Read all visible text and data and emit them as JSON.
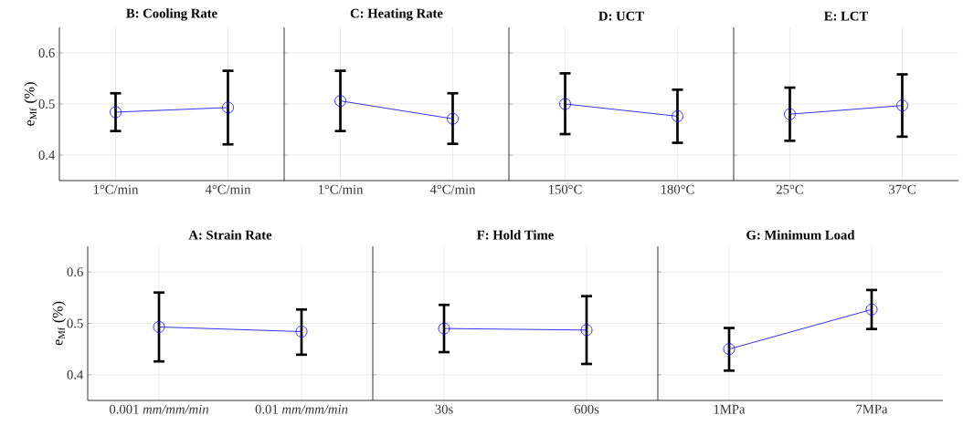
{
  "chart_data": [
    {
      "type": "line",
      "title": "B: Cooling Rate",
      "ylabel": "e$_{Mf}$ (%)",
      "categories": [
        "1°C/min",
        "4°C/min"
      ],
      "values": [
        0.484,
        0.493
      ],
      "errors": [
        [
          0.447,
          0.521
        ],
        [
          0.421,
          0.565
        ]
      ],
      "color": "#0000ff",
      "marker": "circle",
      "ylim": [
        0.35,
        0.65
      ],
      "yticks": [
        0.4,
        0.5,
        0.6
      ],
      "grid": true
    },
    {
      "type": "line",
      "title": "C: Heating Rate",
      "categories": [
        "1°C/min",
        "4°C/min"
      ],
      "values": [
        0.506,
        0.471
      ],
      "errors": [
        [
          0.447,
          0.565
        ],
        [
          0.422,
          0.521
        ]
      ],
      "color": "#0000ff",
      "marker": "circle",
      "ylim": [
        0.35,
        0.65
      ],
      "yticks": [
        0.4,
        0.5,
        0.6
      ],
      "grid": true,
      "tick_labels": "x"
    },
    {
      "type": "line",
      "title": "D: UCT",
      "categories": [
        "150°C",
        "180°C"
      ],
      "values": [
        0.5,
        0.476
      ],
      "errors": [
        [
          0.441,
          0.56
        ],
        [
          0.424,
          0.528
        ]
      ],
      "color": "#0000ff",
      "marker": "circle",
      "ylim": [
        0.35,
        0.65
      ],
      "yticks": [
        0.4,
        0.5,
        0.6
      ],
      "grid": true,
      "tick_labels": "x"
    },
    {
      "type": "line",
      "title": "E: LCT",
      "categories": [
        "25°C",
        "37°C"
      ],
      "values": [
        0.48,
        0.497
      ],
      "errors": [
        [
          0.428,
          0.532
        ],
        [
          0.436,
          0.558
        ]
      ],
      "color": "#0000ff",
      "marker": "circle",
      "ylim": [
        0.35,
        0.65
      ],
      "yticks": [
        0.4,
        0.5,
        0.6
      ],
      "grid": true,
      "tick_labels": "x"
    },
    {
      "type": "line",
      "title": "A: Strain Rate",
      "ylabel": "e$_{Mf}$ (%)",
      "categories": [
        "0.001 *mm/mm/min*",
        "0.01 *mm/mm/min*"
      ],
      "values": [
        0.493,
        0.484
      ],
      "errors": [
        [
          0.426,
          0.56
        ],
        [
          0.439,
          0.527
        ]
      ],
      "color": "#0000ff",
      "marker": "circle",
      "ylim": [
        0.35,
        0.65
      ],
      "yticks": [
        0.4,
        0.5,
        0.6
      ],
      "grid": true
    },
    {
      "type": "line",
      "title": "F: Hold Time",
      "categories": [
        "30s",
        "600s"
      ],
      "values": [
        0.49,
        0.487
      ],
      "errors": [
        [
          0.444,
          0.536
        ],
        [
          0.421,
          0.553
        ]
      ],
      "color": "#0000ff",
      "marker": "circle",
      "ylim": [
        0.35,
        0.65
      ],
      "yticks": [
        0.4,
        0.5,
        0.6
      ],
      "grid": true,
      "tick_labels": "x"
    },
    {
      "type": "line",
      "title": "G: Minimum Load",
      "categories": [
        "1MPa",
        "7MPa"
      ],
      "values": [
        0.45,
        0.527
      ],
      "errors": [
        [
          0.408,
          0.491
        ],
        [
          0.489,
          0.565
        ]
      ],
      "color": "#0000ff",
      "marker": "circle",
      "ylim": [
        0.35,
        0.65
      ],
      "yticks": [
        0.4,
        0.5,
        0.6
      ],
      "grid": true,
      "tick_labels": "x"
    }
  ]
}
